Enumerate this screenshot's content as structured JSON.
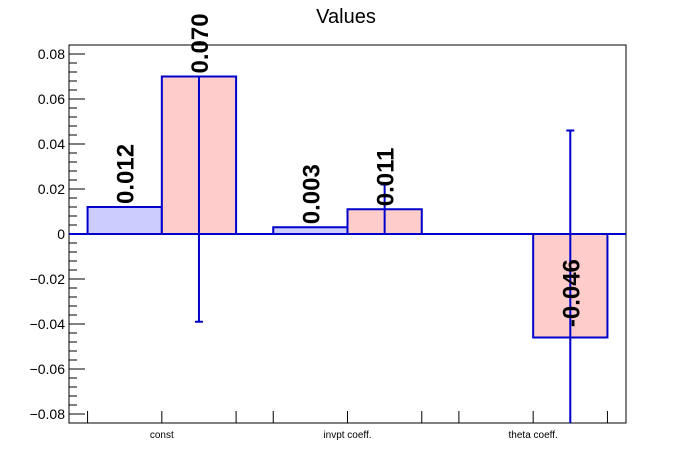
{
  "chart_data": {
    "type": "bar",
    "title": "Values",
    "xlabel": "",
    "ylabel": "",
    "ylim": [
      -0.084,
      0.084
    ],
    "yticks": [
      -0.08,
      -0.06,
      -0.04,
      -0.02,
      0,
      0.02,
      0.04,
      0.06,
      0.08
    ],
    "ytick_labels": [
      "−0.08",
      "−0.06",
      "−0.04",
      "−0.02",
      "0",
      "0.02",
      "0.04",
      "0.06",
      "0.08"
    ],
    "categories": [
      "const",
      "invpt coeff.",
      "theta coeff."
    ],
    "grid": false,
    "legend": "none",
    "series": [
      {
        "values": [
          0.012,
          0.003,
          null
        ],
        "labels": [
          "0.012",
          "0.003",
          ""
        ],
        "errors": [
          null,
          null,
          null
        ],
        "fill": "#ccccff",
        "stroke": "#0000cc"
      },
      {
        "values": [
          0.07,
          0.011,
          -0.046
        ],
        "labels": [
          "0.070",
          "0.011",
          "-0.046"
        ],
        "errors": [
          {
            "low": -0.039,
            "high": 0.07
          },
          {
            "low": 0.0,
            "high": 0.022
          },
          {
            "low": -0.084,
            "high": 0.046
          }
        ],
        "fill": "#ffcccc",
        "stroke": "#0000cc"
      }
    ]
  }
}
